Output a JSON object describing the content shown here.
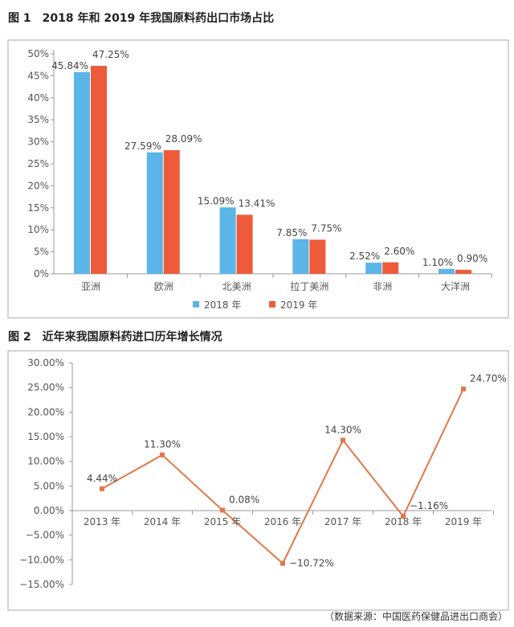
{
  "source_note": "（数据来源：中国医药保健品进出口商会）",
  "colors": {
    "series_2018": "#5bb5e6",
    "series_2019": "#ee5b3a",
    "line": "#e0784a"
  },
  "chart_data": [
    {
      "type": "bar",
      "title": "图 1　2018 年和 2019 年我国原料药出口市场占比",
      "categories": [
        "亚洲",
        "欧洲",
        "北美洲",
        "拉丁美洲",
        "非洲",
        "大洋洲"
      ],
      "series": [
        {
          "name": "2018 年",
          "values": [
            45.84,
            27.59,
            15.09,
            7.85,
            2.52,
            1.1
          ],
          "labels": [
            "45.84%",
            "27.59%",
            "15.09%",
            "7.85%",
            "2.52%",
            "1.10%"
          ]
        },
        {
          "name": "2019 年",
          "values": [
            47.25,
            28.09,
            13.41,
            7.75,
            2.6,
            0.9
          ],
          "labels": [
            "47.25%",
            "28.09%",
            "13.41%",
            "7.75%",
            "2.60%",
            "0.90%"
          ]
        }
      ],
      "ylim": [
        0,
        50
      ],
      "yticks": [
        "0%",
        "5%",
        "10%",
        "15%",
        "20%",
        "25%",
        "30%",
        "35%",
        "40%",
        "45%",
        "50%"
      ],
      "legend": "bottom",
      "grid": false
    },
    {
      "type": "line",
      "title": "图 2　近年来我国原料药进口历年增长情况",
      "categories": [
        "2013 年",
        "2014 年",
        "2015 年",
        "2016 年",
        "2017 年",
        "2018 年",
        "2019 年"
      ],
      "values": [
        4.44,
        11.3,
        0.08,
        -10.72,
        14.3,
        -1.16,
        24.7
      ],
      "labels": [
        "4.44%",
        "11.30%",
        "0.08%",
        "−10.72%",
        "14.30%",
        "−1.16%",
        "24.70%"
      ],
      "ylim": [
        -15,
        30
      ],
      "yticks": [
        "−15.00%",
        "−10.00%",
        "−5.00%",
        "0.00%",
        "5.00%",
        "10.00%",
        "15.00%",
        "20.00%",
        "25.00%",
        "30.00%"
      ],
      "grid": false
    }
  ]
}
